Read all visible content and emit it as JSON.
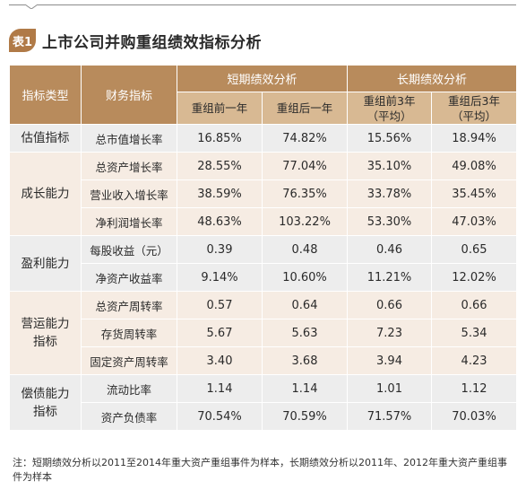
{
  "title": {
    "badge": "表1",
    "text": "上市公司并购重组绩效指标分析"
  },
  "header": {
    "col_type": "指标类型",
    "col_indicator": "财务指标",
    "short_group": "短期绩效分析",
    "long_group": "长期绩效分析",
    "short_before": "重组前一年",
    "short_after": "重组后一年",
    "long_before_line1": "重组前3年",
    "long_before_line2": "（平均）",
    "long_after_line1": "重组后3年",
    "long_after_line2": "（平均）"
  },
  "groups": [
    {
      "category": "估值指标",
      "rows": [
        {
          "indicator": "总市值增长率",
          "v": [
            "16.85%",
            "74.82%",
            "15.56%",
            "18.94%"
          ]
        }
      ]
    },
    {
      "category": "成长能力",
      "rows": [
        {
          "indicator": "总资产增长率",
          "v": [
            "28.55%",
            "77.04%",
            "35.10%",
            "49.08%"
          ]
        },
        {
          "indicator": "营业收入增长率",
          "v": [
            "38.59%",
            "76.35%",
            "33.78%",
            "35.45%"
          ]
        },
        {
          "indicator": "净利润增长率",
          "v": [
            "48.63%",
            "103.22%",
            "53.30%",
            "47.03%"
          ]
        }
      ]
    },
    {
      "category": "盈利能力",
      "rows": [
        {
          "indicator": "每股收益（元）",
          "v": [
            "0.39",
            "0.48",
            "0.46",
            "0.65"
          ]
        },
        {
          "indicator": "净资产收益率",
          "v": [
            "9.14%",
            "10.60%",
            "11.21%",
            "12.02%"
          ]
        }
      ]
    },
    {
      "category_line1": "营运能力",
      "category_line2": "指标",
      "rows": [
        {
          "indicator": "总资产周转率",
          "v": [
            "0.57",
            "0.64",
            "0.66",
            "0.66"
          ]
        },
        {
          "indicator": "存货周转率",
          "v": [
            "5.67",
            "5.63",
            "7.23",
            "5.34"
          ]
        },
        {
          "indicator": "固定资产周转率",
          "v": [
            "3.40",
            "3.68",
            "3.94",
            "4.23"
          ]
        }
      ]
    },
    {
      "category_line1": "偿债能力",
      "category_line2": "指标",
      "rows": [
        {
          "indicator": "流动比率",
          "v": [
            "1.14",
            "1.14",
            "1.01",
            "1.12"
          ]
        },
        {
          "indicator": "资产负债率",
          "v": [
            "70.54%",
            "70.59%",
            "71.57%",
            "70.03%"
          ]
        }
      ]
    }
  ],
  "note": "注：短期绩效分析以2011至2014年重大资产重组事件为样本，长期绩效分析以2011年、2012年重大资产重组事件为样本",
  "colors": {
    "header": "#b88b5c",
    "subheader": "#d8b993",
    "gray_row": "#ededed",
    "beige_row": "#f6ece3",
    "badge": "#b07a47"
  }
}
